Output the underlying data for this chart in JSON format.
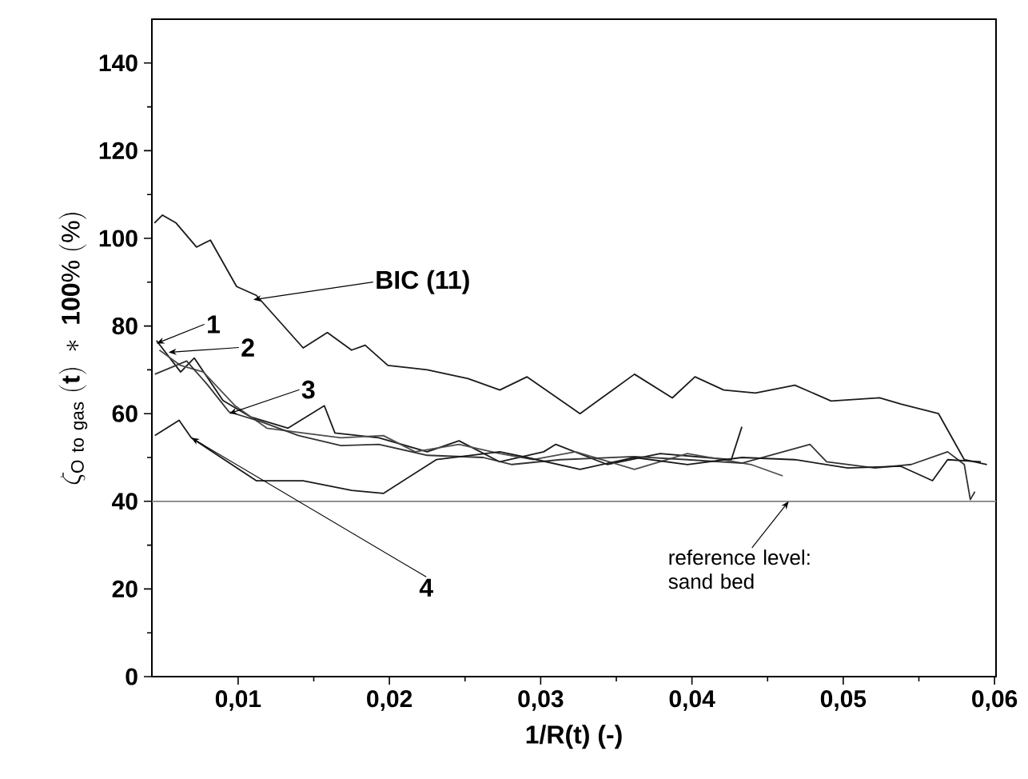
{
  "chart_data": {
    "type": "line",
    "xlabel": "1/R(t)  (-)",
    "ylabel": "\\zeta_{\\mathrm{O\\ to\\ gas}}\\ \\mathbf{(t)\\ *\\ 100\\%\\ (\\%)}",
    "xlim": [
      0.0043,
      0.0601
    ],
    "ylim": [
      0,
      150
    ],
    "xticks": [
      {
        "value": 0.01,
        "label": "0,01"
      },
      {
        "value": 0.02,
        "label": "0,02"
      },
      {
        "value": 0.03,
        "label": "0,03"
      },
      {
        "value": 0.04,
        "label": "0,04"
      },
      {
        "value": 0.05,
        "label": "0,05"
      },
      {
        "value": 0.06,
        "label": "0,06"
      }
    ],
    "yticks": [
      0,
      20,
      40,
      60,
      80,
      100,
      120,
      140
    ],
    "marker": "none",
    "line_style": "solid",
    "series": [
      {
        "color": "#1a1a1a",
        "x": [
          0.00447,
          0.005,
          0.0059,
          0.00725,
          0.00817,
          0.0099,
          0.0112,
          0.0143,
          0.0159,
          0.0175,
          0.0184,
          0.0199,
          0.0225,
          0.0252,
          0.0273,
          0.0291,
          0.0326,
          0.0362,
          0.0387,
          0.0402,
          0.0421,
          0.0442,
          0.0468,
          0.0492,
          0.0524,
          0.0538,
          0.0563,
          0.058,
          0.0595
        ],
        "values": [
          103.5,
          105.3,
          103.5,
          98,
          99.6,
          89,
          87,
          75,
          78.5,
          74.5,
          75.6,
          71,
          70,
          68,
          65.4,
          68.4,
          60,
          69,
          63.6,
          68.4,
          65.4,
          64.7,
          66.5,
          62.9,
          63.6,
          62.2,
          60,
          49.5,
          48.4
        ]
      },
      {
        "color": "#1a1a1a",
        "x": [
          0.0046,
          0.0062,
          0.0071,
          0.009,
          0.0108,
          0.0133,
          0.0157,
          0.0164,
          0.0193,
          0.0225,
          0.0246,
          0.0273,
          0.0302,
          0.031,
          0.0344,
          0.0379,
          0.0426,
          0.0433
        ],
        "values": [
          76.7,
          69.5,
          72.7,
          63,
          59.3,
          56.7,
          61.8,
          55.6,
          54.5,
          51.3,
          53.8,
          49,
          51.3,
          53,
          48.4,
          50.9,
          49.5,
          57
        ]
      },
      {
        "color": "#4d4d4d",
        "x": [
          0.0048,
          0.0062,
          0.0077,
          0.0098,
          0.0119,
          0.0143,
          0.0168,
          0.0196,
          0.0217,
          0.0246,
          0.0273,
          0.0295,
          0.0323,
          0.0362,
          0.0397,
          0.0439,
          0.046
        ],
        "values": [
          74.5,
          71,
          69.5,
          61.8,
          56.7,
          55.6,
          54.5,
          55,
          51.3,
          53,
          50.9,
          49.5,
          51.3,
          47.3,
          50.9,
          48.4,
          45.8
        ]
      },
      {
        "color": "#333333",
        "x": [
          0.0045,
          0.0066,
          0.008,
          0.0094,
          0.0115,
          0.014,
          0.0168,
          0.0193,
          0.0225,
          0.0262,
          0.0281,
          0.0313,
          0.0362,
          0.0397,
          0.0433,
          0.0478,
          0.0489,
          0.0521,
          0.0545,
          0.0569,
          0.058,
          0.0584,
          0.0587
        ],
        "values": [
          69,
          72,
          66.5,
          60.4,
          58.2,
          55,
          52.7,
          53,
          50.5,
          50,
          48.4,
          49.5,
          50.2,
          49.5,
          48.7,
          53,
          49,
          47.6,
          48.4,
          51.3,
          48.4,
          40.4,
          42.2
        ]
      },
      {
        "color": "#1a1a1a",
        "x": [
          0.0045,
          0.0061,
          0.0069,
          0.0112,
          0.0143,
          0.0175,
          0.0196,
          0.0231,
          0.0273,
          0.0291,
          0.0326,
          0.0362,
          0.0397,
          0.0433,
          0.0468,
          0.0503,
          0.0538,
          0.0559,
          0.0569,
          0.0591
        ],
        "values": [
          55,
          58.5,
          54.5,
          44.7,
          44.7,
          42.5,
          41.8,
          49.5,
          51.3,
          50,
          47.3,
          50,
          48.4,
          50,
          49.5,
          47.6,
          48,
          44.7,
          49.5,
          49
        ]
      }
    ],
    "ref_lines": [
      {
        "axis": "y",
        "value": 40,
        "color": "#808080"
      }
    ],
    "annotations": [
      {
        "text": "BIC (11)",
        "x": 0.011,
        "y": 86
      },
      {
        "text": "1",
        "x": 0.0046,
        "y": 76
      },
      {
        "text": "2",
        "x": 0.0054,
        "y": 74
      },
      {
        "text": "3",
        "x": 0.0094,
        "y": 60
      },
      {
        "text": "4",
        "x": 0.0069,
        "y": 54.5
      },
      {
        "text": "reference level: sand bed",
        "x": 0.0464,
        "y": 40
      }
    ]
  }
}
